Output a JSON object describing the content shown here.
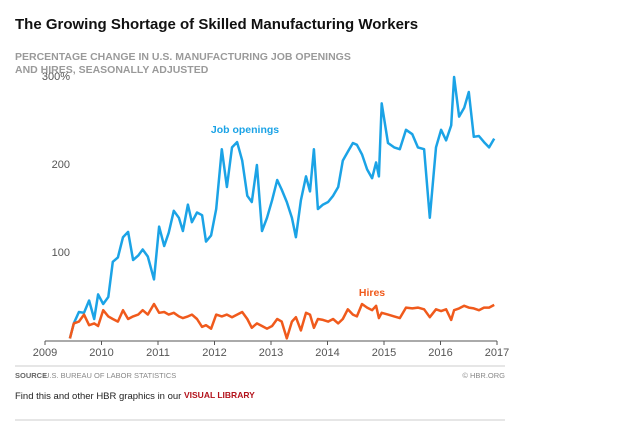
{
  "chart_data": {
    "type": "line",
    "title": "The Growing Shortage of Skilled Manufacturing Workers",
    "subtitle": [
      "PERCENTAGE CHANGE IN U.S. MANUFACTURING JOB OPENINGS",
      "AND HIRES, SEASONALLY ADJUSTED"
    ],
    "x": [
      2009.44,
      2009.51,
      2009.6,
      2009.69,
      2009.78,
      2009.87,
      2009.94,
      2010.03,
      2010.12,
      2010.2,
      2010.29,
      2010.38,
      2010.47,
      2010.56,
      2010.65,
      2010.73,
      2010.82,
      2010.93,
      2011.02,
      2011.11,
      2011.19,
      2011.28,
      2011.37,
      2011.44,
      2011.53,
      2011.6,
      2011.69,
      2011.78,
      2011.85,
      2011.94,
      2012.03,
      2012.13,
      2012.22,
      2012.31,
      2012.4,
      2012.49,
      2012.58,
      2012.66,
      2012.75,
      2012.84,
      2012.93,
      2013.02,
      2013.11,
      2013.19,
      2013.28,
      2013.37,
      2013.44,
      2013.53,
      2013.62,
      2013.69,
      2013.76,
      2013.83,
      2013.92,
      2014.01,
      2014.1,
      2014.19,
      2014.27,
      2014.36,
      2014.45,
      2014.52,
      2014.61,
      2014.7,
      2014.79,
      2014.86,
      2014.91,
      2014.96,
      2015.07,
      2015.18,
      2015.28,
      2015.39,
      2015.5,
      2015.6,
      2015.71,
      2015.81,
      2015.92,
      2016.01,
      2016.1,
      2016.19,
      2016.24,
      2016.33,
      2016.42,
      2016.5,
      2016.59,
      2016.68,
      2016.77,
      2016.86,
      2016.95
    ],
    "series": [
      {
        "name": "Job openings",
        "color": "#1ba3e6",
        "values": [
          3,
          20,
          33,
          32,
          46,
          25,
          53,
          42,
          50,
          90,
          95,
          118,
          124,
          92,
          97,
          104,
          96,
          70,
          130,
          108,
          123,
          148,
          140,
          125,
          155,
          135,
          146,
          143,
          113,
          120,
          150,
          218,
          175,
          220,
          226,
          205,
          165,
          158,
          200,
          125,
          140,
          160,
          183,
          172,
          158,
          140,
          118,
          160,
          187,
          170,
          218,
          150,
          155,
          158,
          165,
          175,
          205,
          215,
          225,
          223,
          212,
          195,
          185,
          203,
          187,
          270,
          225,
          220,
          218,
          240,
          235,
          220,
          218,
          140,
          220,
          240,
          228,
          245,
          300,
          255,
          265,
          283,
          232,
          233,
          226,
          220,
          230
        ]
      },
      {
        "name": "Hires",
        "color": "#f05a1c",
        "values": [
          3,
          20,
          22,
          30,
          18,
          20,
          17,
          35,
          28,
          25,
          22,
          35,
          25,
          28,
          30,
          35,
          30,
          42,
          32,
          33,
          30,
          32,
          28,
          26,
          28,
          30,
          25,
          16,
          18,
          14,
          30,
          28,
          30,
          27,
          30,
          33,
          25,
          15,
          20,
          17,
          14,
          17,
          25,
          22,
          3,
          22,
          27,
          12,
          32,
          30,
          15,
          25,
          24,
          22,
          25,
          20,
          25,
          36,
          30,
          28,
          42,
          38,
          35,
          40,
          26,
          32,
          30,
          28,
          26,
          38,
          37,
          38,
          36,
          27,
          36,
          34,
          36,
          24,
          35,
          37,
          40,
          38,
          37,
          35,
          38,
          38,
          41
        ]
      }
    ],
    "xlim": [
      2009,
      2017
    ],
    "xticks": [
      2009,
      2010,
      2011,
      2012,
      2013,
      2014,
      2015,
      2016,
      2017
    ],
    "ylim": [
      0,
      300
    ],
    "yticks": [
      100,
      200,
      {
        "value": 300,
        "label": "300%"
      }
    ],
    "source_label": "SOURCE",
    "source": "U.S. BUREAU OF LABOR STATISTICS",
    "credit": "© HBR.ORG",
    "footer": "Find this and other HBR graphics in our",
    "footer_link": "VISUAL LIBRARY"
  }
}
